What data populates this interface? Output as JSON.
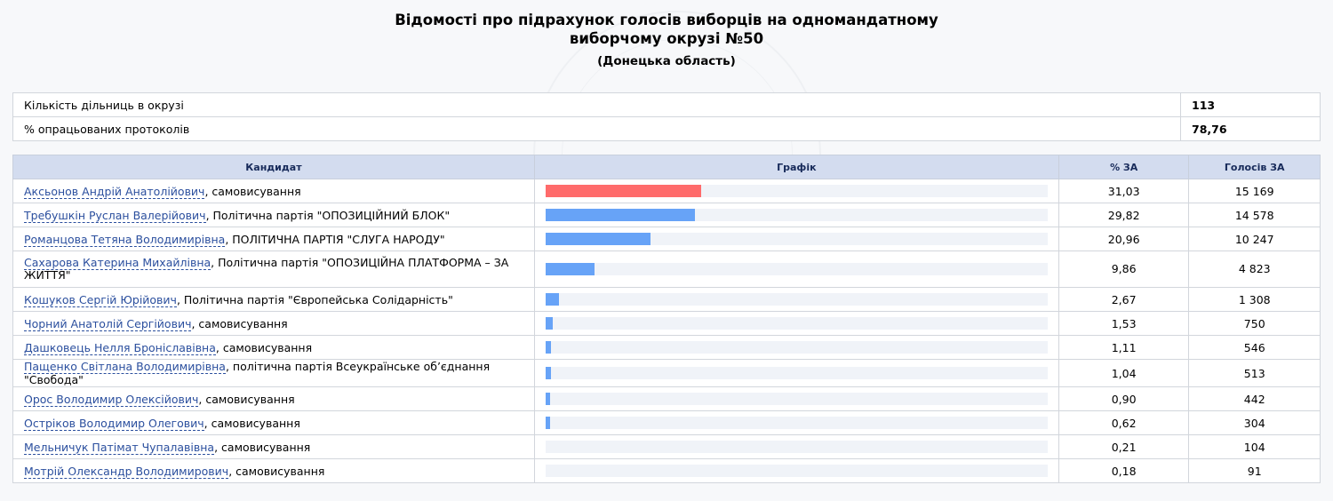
{
  "page": {
    "title_line1": "Відомості про підрахунок голосів виборців на одномандатному",
    "title_line2": "виборчому окрузі №50",
    "region": "(Донецька область)"
  },
  "summary": [
    {
      "label": "Кількість дільниць в окрузі",
      "value": "113"
    },
    {
      "label": "% опрацьованих протоколів",
      "value": "78,76"
    }
  ],
  "table": {
    "headers": {
      "candidate": "Кандидат",
      "graph": "Графік",
      "percent": "% ЗА",
      "votes": "Голосів ЗА"
    },
    "rows": [
      {
        "name": "Аксьонов Андрій Анатолійович",
        "party": ", самовисування",
        "percent": "31,03",
        "votes": "15 169",
        "share": 31.03,
        "leader": true
      },
      {
        "name": "Требушкін Руслан Валерійович",
        "party": ", Політична партія \"ОПОЗИЦІЙНИЙ БЛОК\"",
        "percent": "29,82",
        "votes": "14 578",
        "share": 29.82
      },
      {
        "name": "Романцова Тетяна Володимирівна",
        "party": ", ПОЛІТИЧНА ПАРТІЯ \"СЛУГА НАРОДУ\"",
        "percent": "20,96",
        "votes": "10 247",
        "share": 20.96
      },
      {
        "name": "Сахарова Катерина Михайлівна",
        "party": ", Політична партія \"ОПОЗИЦІЙНА ПЛАТФОРМА – ЗА ЖИТТЯ\"",
        "percent": "9,86",
        "votes": "4 823",
        "share": 9.86,
        "tall": true
      },
      {
        "name": "Кошуков Сергій Юрійович",
        "party": ", Політична партія \"Європейська Солідарність\"",
        "percent": "2,67",
        "votes": "1 308",
        "share": 2.67
      },
      {
        "name": "Чорний Анатолій Сергійович",
        "party": ", самовисування",
        "percent": "1,53",
        "votes": "750",
        "share": 1.53
      },
      {
        "name": "Дашковець Нелля Броніславівна",
        "party": ", самовисування",
        "percent": "1,11",
        "votes": "546",
        "share": 1.11
      },
      {
        "name": "Пащенко Світлана Володимирівна",
        "party": ", політична партія Всеукраїнське об’єднання \"Свобода\"",
        "percent": "1,04",
        "votes": "513",
        "share": 1.04
      },
      {
        "name": "Орос Володимир Олексійович",
        "party": ", самовисування",
        "percent": "0,90",
        "votes": "442",
        "share": 0.9
      },
      {
        "name": "Остріков Володимир Олегович",
        "party": ", самовисування",
        "percent": "0,62",
        "votes": "304",
        "share": 0.62
      },
      {
        "name": "Мельничук Патімат Чупалавівна",
        "party": ", самовисування",
        "percent": "0,21",
        "votes": "104",
        "share": 0.21
      },
      {
        "name": "Мотрій Олександр Володимирович",
        "party": ", самовисування",
        "percent": "0,18",
        "votes": "91",
        "share": 0.18
      }
    ]
  },
  "colors": {
    "leader_bar": "#ff6b6b",
    "bar": "#67a3f7",
    "header_bg": "#d3dcef"
  }
}
